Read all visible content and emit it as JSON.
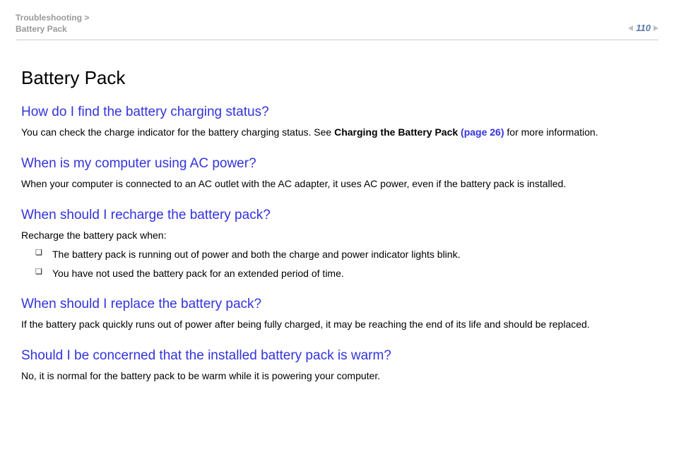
{
  "header": {
    "breadcrumb_line1": "Troubleshooting >",
    "breadcrumb_line2": "Battery Pack",
    "page_number": "110"
  },
  "title": "Battery Pack",
  "sections": [
    {
      "heading": "How do I find the battery charging status?",
      "body_pre": "You can check the charge indicator for the battery charging status. See ",
      "body_bold": "Charging the Battery Pack",
      "body_link": " (page 26)",
      "body_post": " for more information."
    },
    {
      "heading": "When is my computer using AC power?",
      "body": "When your computer is connected to an AC outlet with the AC adapter, it uses AC power, even if the battery pack is installed."
    },
    {
      "heading": "When should I recharge the battery pack?",
      "intro": "Recharge the battery pack when:",
      "bullets": [
        "The battery pack is running out of power and both the charge and power indicator lights blink.",
        "You have not used the battery pack for an extended period of time."
      ]
    },
    {
      "heading": "When should I replace the battery pack?",
      "body": "If the battery pack quickly runs out of power after being fully charged, it may be reaching the end of its life and should be replaced."
    },
    {
      "heading": "Should I be concerned that the installed battery pack is warm?",
      "body": "No, it is normal for the battery pack to be warm while it is powering your computer."
    }
  ],
  "colors": {
    "heading_color": "#3333dd",
    "breadcrumb_color": "#999999",
    "pagenum_color": "#5a7aa8",
    "text_color": "#000000",
    "background": "#ffffff"
  },
  "bullet_glyph": "❏"
}
